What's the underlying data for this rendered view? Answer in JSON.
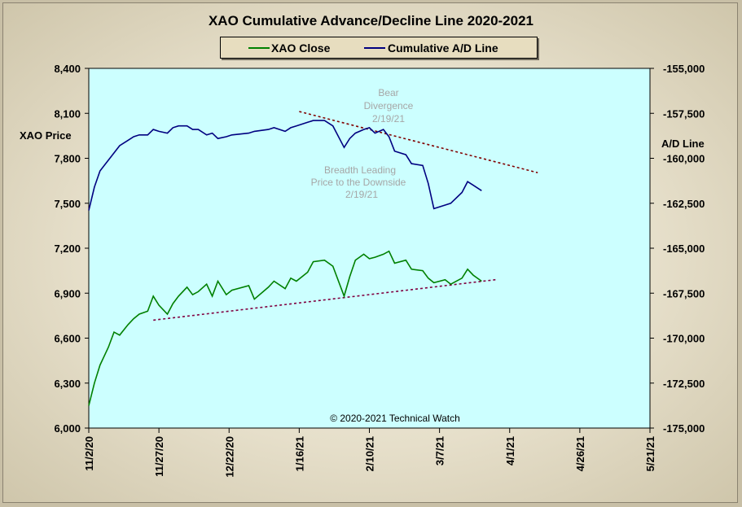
{
  "chart_data": {
    "type": "line",
    "title": "XAO Cumulative Advance/Decline Line 2020-2021",
    "ylabel": "XAO Price",
    "y2label": "A/D Line",
    "ylim": [
      6000,
      8400
    ],
    "y2lim": [
      -175000,
      -155000
    ],
    "yticks": [
      "8,400",
      "8,100",
      "7,800",
      "7,500",
      "7,200",
      "6,900",
      "6,600",
      "6,300",
      "6,000"
    ],
    "y2ticks": [
      "-155,000",
      "-157,500",
      "-160,000",
      "-162,500",
      "-165,000",
      "-167,500",
      "-170,000",
      "-172,500",
      "-175,000"
    ],
    "xticks": [
      "11/2/20",
      "11/27/20",
      "12/22/20",
      "1/16/21",
      "2/10/21",
      "3/7/21",
      "4/1/21",
      "4/26/21",
      "5/21/21"
    ],
    "grid": false,
    "legend_position": "top-center",
    "background_color": "#ccffff",
    "series": [
      {
        "name": "XAO Close",
        "axis": "left",
        "color": "#008000",
        "x": [
          "2020-11-02",
          "2020-11-04",
          "2020-11-06",
          "2020-11-09",
          "2020-11-11",
          "2020-11-13",
          "2020-11-16",
          "2020-11-18",
          "2020-11-20",
          "2020-11-23",
          "2020-11-25",
          "2020-11-27",
          "2020-11-30",
          "2020-12-02",
          "2020-12-04",
          "2020-12-07",
          "2020-12-09",
          "2020-12-11",
          "2020-12-14",
          "2020-12-16",
          "2020-12-18",
          "2020-12-21",
          "2020-12-23",
          "2020-12-29",
          "2020-12-31",
          "2021-01-05",
          "2021-01-07",
          "2021-01-11",
          "2021-01-13",
          "2021-01-15",
          "2021-01-19",
          "2021-01-21",
          "2021-01-25",
          "2021-01-28",
          "2021-02-01",
          "2021-02-03",
          "2021-02-05",
          "2021-02-08",
          "2021-02-10",
          "2021-02-12",
          "2021-02-15",
          "2021-02-17",
          "2021-02-19",
          "2021-02-23",
          "2021-02-25",
          "2021-03-01",
          "2021-03-03",
          "2021-03-05",
          "2021-03-09",
          "2021-03-11",
          "2021-03-15",
          "2021-03-17",
          "2021-03-19",
          "2021-03-22"
        ],
        "y": [
          6150,
          6300,
          6420,
          6540,
          6640,
          6620,
          6690,
          6730,
          6760,
          6780,
          6880,
          6820,
          6760,
          6830,
          6880,
          6940,
          6890,
          6910,
          6960,
          6880,
          6980,
          6890,
          6920,
          6950,
          6860,
          6940,
          6980,
          6930,
          7000,
          6980,
          7040,
          7110,
          7120,
          7080,
          6880,
          7010,
          7120,
          7160,
          7130,
          7140,
          7160,
          7180,
          7100,
          7120,
          7060,
          7050,
          7000,
          6970,
          6990,
          6960,
          7000,
          7060,
          7020,
          6980
        ]
      },
      {
        "name": "Cumulative A/D Line",
        "axis": "right",
        "color": "#000080",
        "x": [
          "2020-11-02",
          "2020-11-04",
          "2020-11-06",
          "2020-11-09",
          "2020-11-11",
          "2020-11-13",
          "2020-11-16",
          "2020-11-18",
          "2020-11-20",
          "2020-11-23",
          "2020-11-25",
          "2020-11-27",
          "2020-11-30",
          "2020-12-02",
          "2020-12-04",
          "2020-12-07",
          "2020-12-09",
          "2020-12-11",
          "2020-12-14",
          "2020-12-16",
          "2020-12-18",
          "2020-12-21",
          "2020-12-23",
          "2020-12-29",
          "2020-12-31",
          "2021-01-05",
          "2021-01-07",
          "2021-01-11",
          "2021-01-13",
          "2021-01-15",
          "2021-01-19",
          "2021-01-21",
          "2021-01-25",
          "2021-01-28",
          "2021-02-01",
          "2021-02-03",
          "2021-02-05",
          "2021-02-08",
          "2021-02-10",
          "2021-02-12",
          "2021-02-15",
          "2021-02-17",
          "2021-02-19",
          "2021-02-23",
          "2021-02-25",
          "2021-03-01",
          "2021-03-03",
          "2021-03-05",
          "2021-03-09",
          "2021-03-11",
          "2021-03-15",
          "2021-03-17",
          "2021-03-19",
          "2021-03-22"
        ],
        "y": [
          -162900,
          -161600,
          -160700,
          -160100,
          -159700,
          -159300,
          -159000,
          -158800,
          -158700,
          -158700,
          -158400,
          -158500,
          -158600,
          -158300,
          -158200,
          -158200,
          -158400,
          -158400,
          -158700,
          -158600,
          -158900,
          -158800,
          -158700,
          -158600,
          -158500,
          -158400,
          -158300,
          -158500,
          -158300,
          -158200,
          -158000,
          -157900,
          -157900,
          -158200,
          -159400,
          -158900,
          -158600,
          -158400,
          -158300,
          -158600,
          -158400,
          -158800,
          -159600,
          -159800,
          -160300,
          -160400,
          -161400,
          -162800,
          -162600,
          -162500,
          -161900,
          -161300,
          -161500,
          -161800
        ]
      }
    ],
    "trendlines": [
      {
        "axis": "right",
        "color": "#800000",
        "x": [
          "2021-01-16",
          "2021-04-11"
        ],
        "y": [
          -157400,
          -160800
        ]
      },
      {
        "axis": "left",
        "color": "#800040",
        "x": [
          "2020-11-25",
          "2021-03-27"
        ],
        "y": [
          6720,
          6990
        ]
      }
    ],
    "annotations": [
      {
        "lines": [
          "Bear",
          "Divergence",
          "2/19/21"
        ]
      },
      {
        "lines": [
          "Breadth Leading",
          "Price to the Downside",
          "2/19/21"
        ]
      },
      {
        "lines": [
          "© 2020-2021  Technical Watch"
        ]
      }
    ]
  }
}
